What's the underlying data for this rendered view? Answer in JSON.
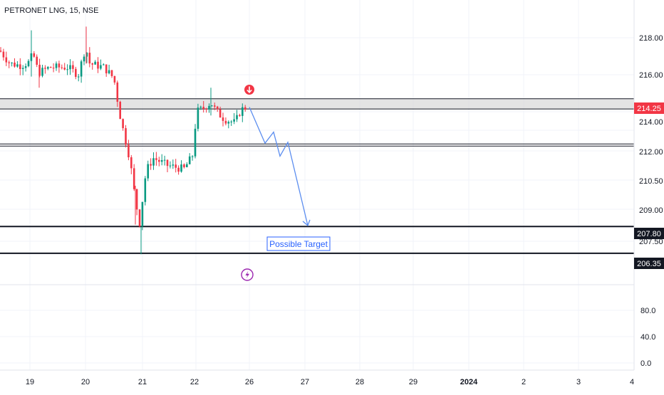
{
  "header": {
    "symbol_title": "PETRONET LNG, 15, NSE"
  },
  "chart_data": {
    "type": "candlestick",
    "price_axis": {
      "ticks": [
        "218.00",
        "216.00",
        "212.00",
        "210.50",
        "209.00"
      ],
      "ylim": [
        205.4,
        219.2
      ]
    },
    "indicator_axis": {
      "ticks": [
        "80.0",
        "40.0",
        "0.0"
      ]
    },
    "time_axis": {
      "ticks": [
        "19",
        "20",
        "21",
        "22",
        "26",
        "27",
        "28",
        "29",
        "2024",
        "2",
        "3",
        "4"
      ],
      "bold_tick": "2024"
    },
    "price_badges": [
      {
        "label": "214.25",
        "value": 214.25,
        "color": "#f23645"
      },
      {
        "label": "207.80",
        "value": 207.8,
        "color": "#131722"
      },
      {
        "label": "206.35",
        "value": 206.35,
        "color": "#131722"
      }
    ],
    "horizontal_levels": [
      {
        "value": 214.7,
        "style": "thin"
      },
      {
        "value": 214.15,
        "style": "thin"
      },
      {
        "value": 212.2,
        "style": "double"
      },
      {
        "value": 207.8,
        "style": "thick"
      },
      {
        "value": 206.35,
        "style": "thick"
      }
    ],
    "resistance_zone": {
      "top": 214.7,
      "bottom": 214.15,
      "fill": "#d9d9d9"
    },
    "projection_path_prices": [
      214.25,
      212.3,
      212.9,
      211.6,
      212.35,
      207.85
    ],
    "annotations": [
      {
        "text": "Possible Target",
        "color": "#2962ff"
      }
    ],
    "markers": [
      {
        "name": "sell-signal-icon",
        "color": "#f23645"
      },
      {
        "name": "flash-icon",
        "color": "#9c27b0"
      }
    ],
    "colors": {
      "up": "#089981",
      "down": "#f23645",
      "projection": "#5b8def"
    }
  }
}
